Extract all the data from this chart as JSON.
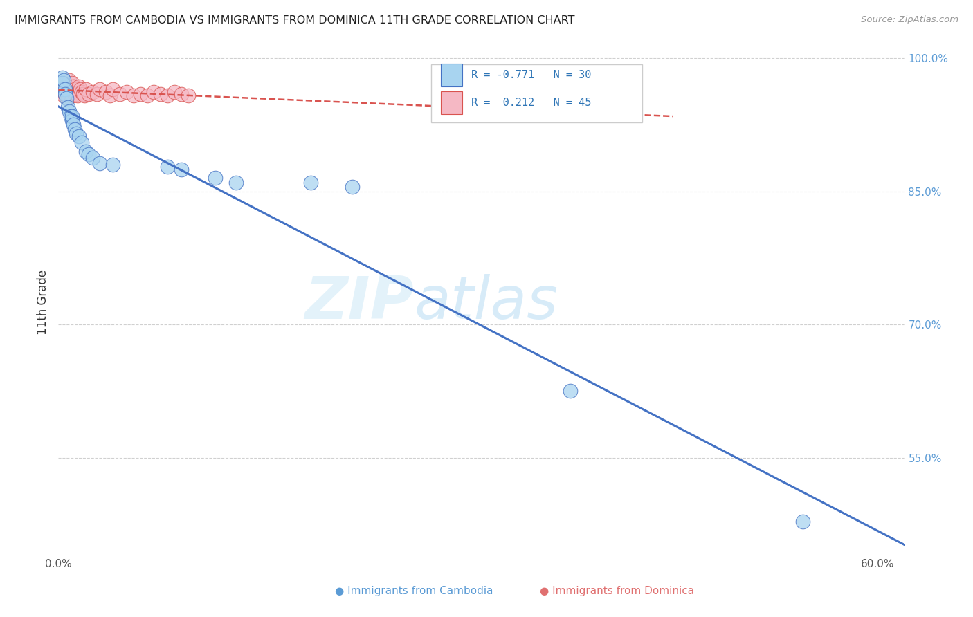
{
  "title": "IMMIGRANTS FROM CAMBODIA VS IMMIGRANTS FROM DOMINICA 11TH GRADE CORRELATION CHART",
  "source": "Source: ZipAtlas.com",
  "ylabel": "11th Grade",
  "xlim": [
    0.0,
    0.62
  ],
  "ylim": [
    0.44,
    1.01
  ],
  "yticks": [
    0.55,
    0.7,
    0.85,
    1.0
  ],
  "ytick_labels": [
    "55.0%",
    "70.0%",
    "85.0%",
    "100.0%"
  ],
  "xticks": [
    0.0,
    0.1,
    0.2,
    0.3,
    0.4,
    0.5,
    0.6
  ],
  "xtick_labels": [
    "0.0%",
    "",
    "",
    "",
    "",
    "",
    "60.0%"
  ],
  "color_cambodia": "#a8d4f0",
  "color_dominica": "#f5b8c4",
  "color_line_cambodia": "#4472c4",
  "color_line_dominica": "#d9534f",
  "watermark_zip": "ZIP",
  "watermark_atlas": "atlas",
  "cambodia_x": [
    0.003,
    0.003,
    0.004,
    0.004,
    0.005,
    0.005,
    0.006,
    0.007,
    0.008,
    0.009,
    0.01,
    0.01,
    0.011,
    0.012,
    0.013,
    0.015,
    0.017,
    0.02,
    0.022,
    0.025,
    0.03,
    0.04,
    0.08,
    0.09,
    0.115,
    0.13,
    0.185,
    0.215,
    0.375,
    0.545
  ],
  "cambodia_y": [
    0.978,
    0.972,
    0.965,
    0.975,
    0.965,
    0.96,
    0.955,
    0.945,
    0.94,
    0.935,
    0.93,
    0.935,
    0.925,
    0.92,
    0.915,
    0.912,
    0.905,
    0.895,
    0.892,
    0.888,
    0.882,
    0.88,
    0.878,
    0.875,
    0.865,
    0.86,
    0.86,
    0.855,
    0.625,
    0.478
  ],
  "dominica_x": [
    0.002,
    0.003,
    0.004,
    0.005,
    0.005,
    0.006,
    0.006,
    0.007,
    0.007,
    0.008,
    0.008,
    0.009,
    0.009,
    0.01,
    0.01,
    0.01,
    0.011,
    0.011,
    0.012,
    0.013,
    0.014,
    0.015,
    0.016,
    0.017,
    0.018,
    0.019,
    0.02,
    0.022,
    0.025,
    0.028,
    0.03,
    0.035,
    0.038,
    0.04,
    0.045,
    0.05,
    0.055,
    0.06,
    0.065,
    0.07,
    0.075,
    0.08,
    0.085,
    0.09,
    0.095
  ],
  "dominica_y": [
    0.968,
    0.962,
    0.958,
    0.972,
    0.96,
    0.97,
    0.962,
    0.968,
    0.955,
    0.975,
    0.965,
    0.968,
    0.958,
    0.965,
    0.972,
    0.958,
    0.968,
    0.962,
    0.965,
    0.96,
    0.958,
    0.968,
    0.965,
    0.962,
    0.96,
    0.958,
    0.965,
    0.96,
    0.962,
    0.96,
    0.965,
    0.962,
    0.958,
    0.965,
    0.96,
    0.962,
    0.958,
    0.96,
    0.958,
    0.962,
    0.96,
    0.958,
    0.962,
    0.96,
    0.958
  ],
  "legend_text_1": "R = -0.771   N = 30",
  "legend_text_2": "R =  0.212   N = 45"
}
